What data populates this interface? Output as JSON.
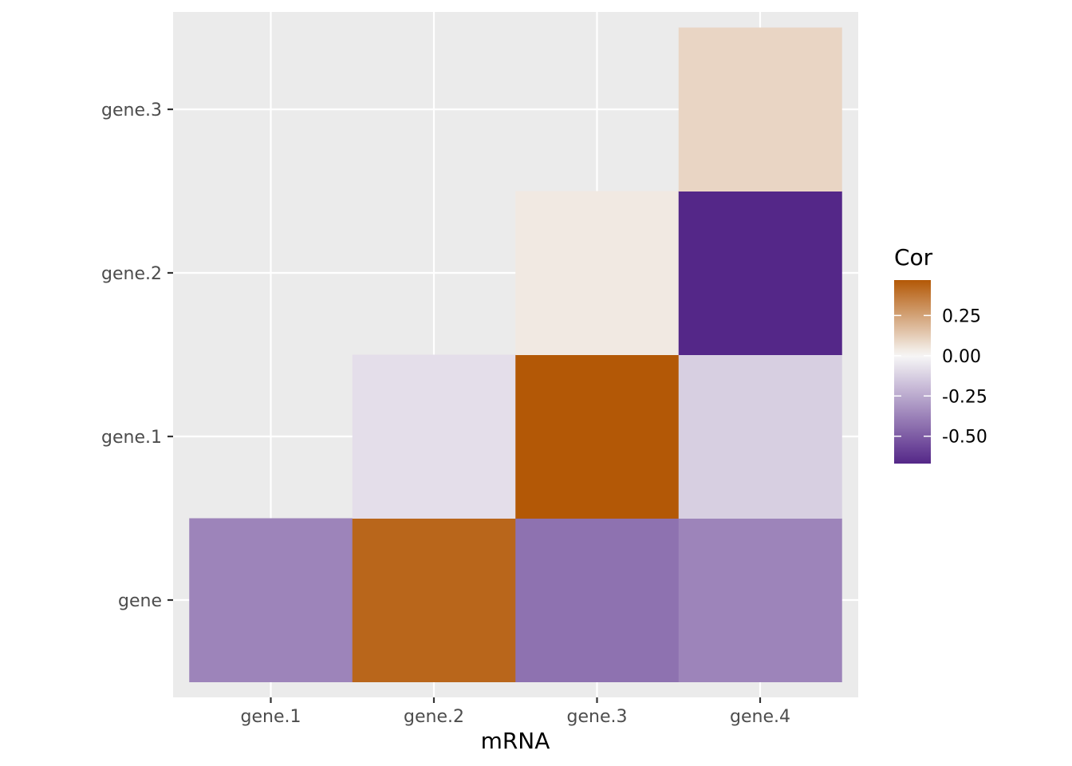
{
  "chart_data": {
    "type": "heatmap",
    "title": "",
    "xlabel": "mRNA",
    "ylabel": "",
    "x_categories": [
      "gene.1",
      "gene.2",
      "gene.3",
      "gene.4"
    ],
    "y_categories": [
      "gene",
      "gene.1",
      "gene.2",
      "gene.3"
    ],
    "cells": [
      {
        "x": "gene.1",
        "y": "gene",
        "value": -0.37
      },
      {
        "x": "gene.2",
        "y": "gene",
        "value": 0.43
      },
      {
        "x": "gene.3",
        "y": "gene",
        "value": -0.43
      },
      {
        "x": "gene.4",
        "y": "gene",
        "value": -0.37
      },
      {
        "x": "gene.2",
        "y": "gene.1",
        "value": -0.08
      },
      {
        "x": "gene.3",
        "y": "gene.1",
        "value": 0.47
      },
      {
        "x": "gene.4",
        "y": "gene.1",
        "value": -0.13
      },
      {
        "x": "gene.3",
        "y": "gene.2",
        "value": 0.04
      },
      {
        "x": "gene.4",
        "y": "gene.2",
        "value": -0.67
      },
      {
        "x": "gene.4",
        "y": "gene.3",
        "value": 0.1
      }
    ],
    "grid": true,
    "legend": {
      "title": "Cor",
      "position": "right",
      "limits": [
        -0.67,
        0.47
      ],
      "ticks": [
        0.25,
        0.0,
        -0.25,
        -0.5
      ],
      "tick_labels": [
        "0.25",
        "0.00",
        "-0.25",
        "-0.50"
      ]
    },
    "colors": {
      "panel_background": "#EBEBEB",
      "grid": "#FFFFFF",
      "low": "#542788",
      "mid": "#F7F7F7",
      "high": "#B35806"
    }
  }
}
